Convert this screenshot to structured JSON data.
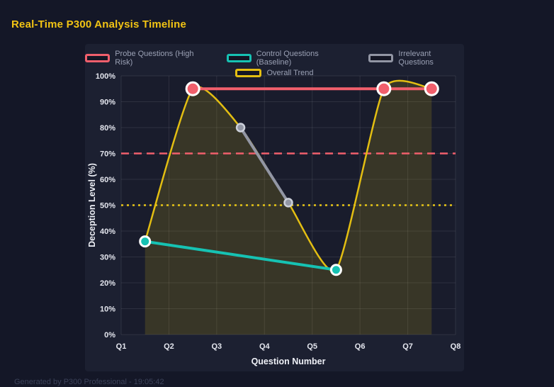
{
  "page": {
    "title": "Real-Time P300 Analysis Timeline",
    "footer": "Generated by P300 Professional - 19:05:42"
  },
  "colors": {
    "background": "#141727",
    "panel": "#1c2031",
    "plot_background": "#191c2c",
    "grid": "rgba(255,255,255,0.09)",
    "title": "#f2c414",
    "probe_red": "#f15f6c",
    "control_teal": "#16c2b3",
    "irrelevant_gray": "#9296a4",
    "trend_gold": "#e3be12",
    "threshold_red": "#f15f6c",
    "threshold_gold": "#e8c517",
    "area_fill": "rgba(227,190,18,0.16)",
    "tick_text": "#e4e6ee",
    "axis_title_text": "#eef0f6",
    "legend_text": "#9aa0b4",
    "point_ring": "#ffffff",
    "gray_point_ring": "#ccd0da",
    "footer_text": "#3c4259"
  },
  "chart_data": {
    "type": "line",
    "title": "Real-Time P300 Analysis Timeline",
    "xlabel": "Question Number",
    "ylabel": "Deception Level (%)",
    "x_ticks": [
      "Q1",
      "Q2",
      "Q3",
      "Q4",
      "Q5",
      "Q6",
      "Q7",
      "Q8"
    ],
    "x_range": [
      1,
      8
    ],
    "y_ticks": [
      "0%",
      "10%",
      "20%",
      "30%",
      "40%",
      "50%",
      "60%",
      "70%",
      "80%",
      "90%",
      "100%"
    ],
    "ylim": [
      0,
      100
    ],
    "grid": true,
    "legend_position": "top",
    "series": [
      {
        "name": "Probe Questions (High Risk)",
        "color": "#f15f6c",
        "line_width": 4,
        "point_radius": 9,
        "point_ring": "#ffffff",
        "ring_width": 3,
        "points": [
          [
            2.5,
            95
          ],
          [
            6.5,
            95
          ],
          [
            7.5,
            95
          ]
        ]
      },
      {
        "name": "Control Questions (Baseline)",
        "color": "#16c2b3",
        "line_width": 4,
        "point_radius": 7,
        "point_ring": "#ffffff",
        "ring_width": 3,
        "points": [
          [
            1.5,
            36
          ],
          [
            5.5,
            25
          ]
        ]
      },
      {
        "name": "Irrelevant Questions",
        "color": "#9296a4",
        "line_width": 4,
        "point_radius": 5.5,
        "point_ring": "#ccd0da",
        "ring_width": 2.5,
        "points": [
          [
            3.5,
            80
          ],
          [
            4.5,
            51
          ]
        ]
      },
      {
        "name": "Overall Trend",
        "color": "#e3be12",
        "line_width": 2.5,
        "smooth": true,
        "fill": true,
        "point_radius": 0,
        "points": [
          [
            1.5,
            36
          ],
          [
            2.5,
            95
          ],
          [
            3.5,
            80
          ],
          [
            4.5,
            51
          ],
          [
            5.5,
            25
          ],
          [
            6.5,
            95
          ],
          [
            7.5,
            95
          ]
        ]
      }
    ],
    "thresholds": [
      {
        "value": 70,
        "color": "#f15f6c",
        "style": "dashed",
        "name": "probe-threshold-70"
      },
      {
        "value": 50,
        "color": "#e8c517",
        "style": "dotted",
        "name": "baseline-threshold-50"
      }
    ]
  }
}
